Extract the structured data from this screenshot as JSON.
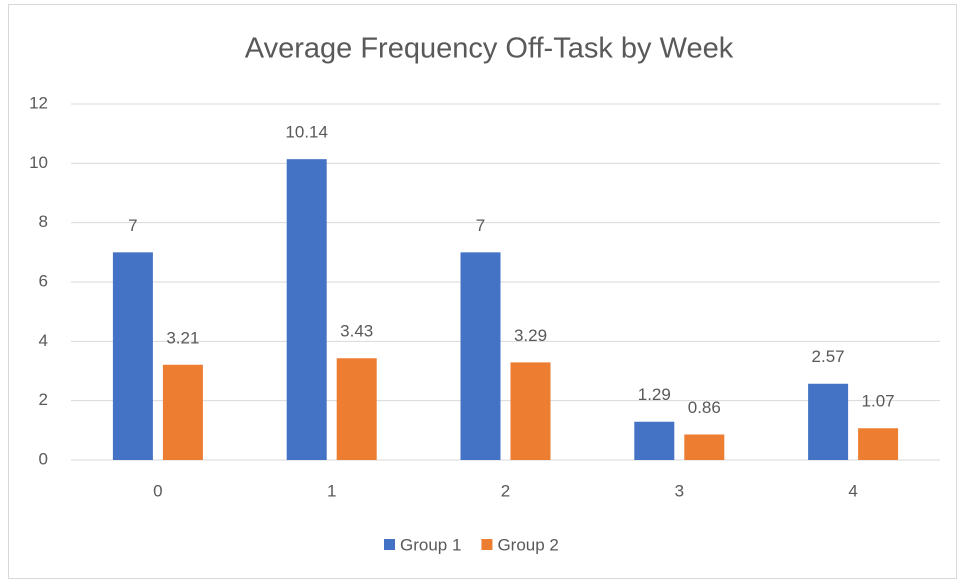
{
  "chart_data": {
    "type": "bar",
    "title": "Average Frequency Off-Task by Week",
    "categories": [
      "0",
      "1",
      "2",
      "3",
      "4"
    ],
    "series": [
      {
        "name": "Group 1",
        "color": "#4472c4",
        "values": [
          7,
          10.14,
          7,
          1.29,
          2.57
        ]
      },
      {
        "name": "Group 2",
        "color": "#ed7d31",
        "values": [
          3.21,
          3.43,
          3.29,
          0.86,
          1.07
        ]
      }
    ],
    "ylim": [
      0,
      12
    ],
    "yticks": [
      0,
      2,
      4,
      6,
      8,
      10,
      12
    ],
    "grid": true,
    "legend": "bottom"
  }
}
